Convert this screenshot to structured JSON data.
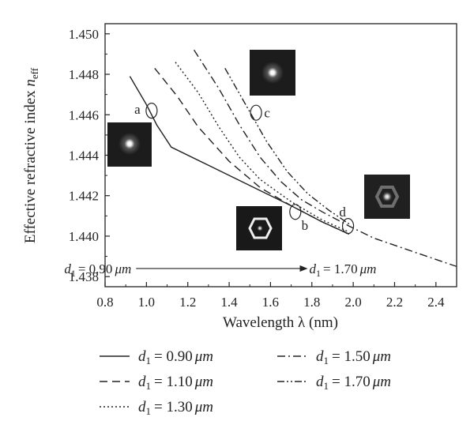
{
  "chart_data": {
    "type": "line",
    "xlabel": "Wavelength λ (nm)",
    "ylabel": "Effective refractive index n_eff",
    "ylabel_main": "Effective refractive index ",
    "ylabel_italic": "n",
    "ylabel_sub": "eff",
    "xlim": [
      0.8,
      2.5
    ],
    "ylim": [
      1.4375,
      1.4505
    ],
    "xticks": [
      "0.8",
      "1.0",
      "1.2",
      "1.4",
      "1.6",
      "1.8",
      "2.0",
      "2.2",
      "2.4"
    ],
    "yticks": [
      "1.438",
      "1.440",
      "1.442",
      "1.444",
      "1.446",
      "1.448",
      "1.450"
    ],
    "grid": false,
    "legend_position": "below",
    "series": [
      {
        "name": "d1 = 0.90 μm",
        "legend_text": "= 0.90",
        "unit": "μm",
        "style": "solid",
        "x": [
          0.92,
          1.0,
          1.05,
          1.12,
          1.3,
          1.5,
          1.7,
          1.85,
          1.98
        ],
        "y": [
          1.4479,
          1.4465,
          1.4455,
          1.4444,
          1.4435,
          1.4425,
          1.4415,
          1.4407,
          1.4401
        ]
      },
      {
        "name": "d1 = 1.10 μm",
        "legend_text": "= 1.10",
        "unit": "μm",
        "style": "dash",
        "x": [
          1.04,
          1.15,
          1.25,
          1.4,
          1.55,
          1.7,
          1.85,
          1.98
        ],
        "y": [
          1.4483,
          1.4469,
          1.4454,
          1.4437,
          1.4424,
          1.4415,
          1.4407,
          1.4401
        ]
      },
      {
        "name": "d1 = 1.30 μm",
        "legend_text": "= 1.30",
        "unit": "μm",
        "style": "dot",
        "x": [
          1.14,
          1.25,
          1.35,
          1.45,
          1.55,
          1.7,
          1.85,
          1.98
        ],
        "y": [
          1.4486,
          1.4471,
          1.4454,
          1.4439,
          1.4428,
          1.4417,
          1.4408,
          1.4402
        ]
      },
      {
        "name": "d1 = 1.50 μm",
        "legend_text": "= 1.50",
        "unit": "μm",
        "style": "dashdot",
        "x": [
          1.23,
          1.35,
          1.45,
          1.55,
          1.65,
          1.75,
          1.85,
          1.98,
          2.1,
          2.3,
          2.5
        ],
        "y": [
          1.4492,
          1.4473,
          1.4455,
          1.4439,
          1.4427,
          1.4418,
          1.4412,
          1.4405,
          1.4399,
          1.4392,
          1.4385
        ]
      },
      {
        "name": "d1 = 1.70 μm",
        "legend_text": "= 1.70",
        "unit": "μm",
        "style": "dashdotdot",
        "x": [
          1.38,
          1.48,
          1.58,
          1.68,
          1.78,
          1.88,
          1.98
        ],
        "y": [
          1.4483,
          1.4465,
          1.4447,
          1.4432,
          1.4421,
          1.4413,
          1.4406
        ]
      }
    ],
    "annotations": {
      "markers": [
        {
          "label": "a",
          "x": 1.025,
          "y": 1.4462
        },
        {
          "label": "b",
          "x": 1.72,
          "y": 1.4412
        },
        {
          "label": "c",
          "x": 1.53,
          "y": 1.4461
        },
        {
          "label": "d",
          "x": 1.975,
          "y": 1.4405
        }
      ],
      "sweep": {
        "from_value": "= 0.90",
        "to_value": "= 1.70",
        "unit": "μm",
        "from_x": 0.95,
        "to_x": 1.78,
        "y": 1.4384
      }
    },
    "mode_images": {
      "a": "fundamental mode profile",
      "b": "hexagonal cladding mode profile",
      "c": "fundamental mode profile",
      "d": "core mode with weak hexagonal ring"
    }
  }
}
